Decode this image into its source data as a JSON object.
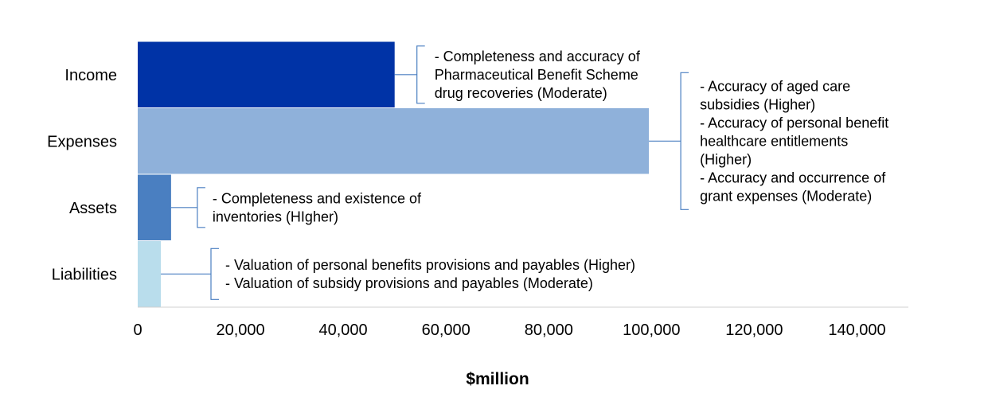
{
  "chart_data": {
    "type": "bar",
    "orientation": "horizontal",
    "categories": [
      "Income",
      "Expenses",
      "Assets",
      "Liabilities"
    ],
    "values": [
      50000,
      99500,
      6500,
      4500
    ],
    "colors": [
      "#0033a6",
      "#8fb1da",
      "#4a7fc1",
      "#b9ddec"
    ],
    "xlabel": "$million",
    "xlim": [
      0,
      150000
    ],
    "xticks": [
      "0",
      "20,000",
      "40,000",
      "60,000",
      "80,000",
      "100,000",
      "120,000",
      "140,000"
    ],
    "grid": false,
    "annotations": [
      {
        "target": "Income",
        "lines": [
          "- Completeness and accuracy of",
          "Pharmaceutical Benefit Scheme",
          "drug recoveries (Moderate)"
        ]
      },
      {
        "target": "Expenses",
        "lines": [
          "- Accuracy of aged care",
          "subsidies (Higher)",
          "- Accuracy of personal benefit",
          "healthcare entitlements",
          "(Higher)",
          "- Accuracy and occurrence of",
          "grant expenses (Moderate)"
        ]
      },
      {
        "target": "Assets",
        "lines": [
          "- Completeness and existence of",
          "inventories (HIgher)"
        ]
      },
      {
        "target": "Liabilities",
        "lines": [
          "- Valuation of personal benefits provisions and payables (Higher)",
          "- Valuation of subsidy provisions and payables (Moderate)"
        ]
      }
    ]
  }
}
